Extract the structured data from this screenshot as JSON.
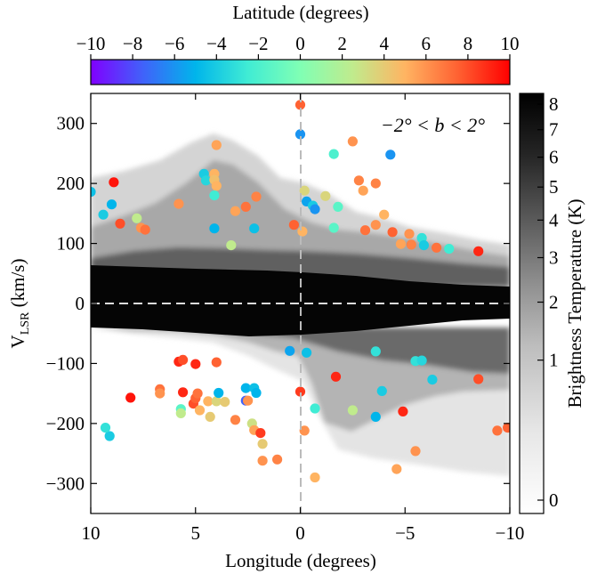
{
  "chart_data": {
    "type": "scatter",
    "title": "",
    "xlabel": "Longitude (degrees)",
    "ylabel_main": "V",
    "ylabel_sub": "LSR",
    "ylabel_unit": " (km/s)",
    "xlim": [
      10,
      -10
    ],
    "ylim": [
      -350,
      350
    ],
    "x_ticks": [
      10,
      5,
      0,
      -5,
      -10
    ],
    "x_tick_labels": [
      "10",
      "5",
      "0",
      "−5",
      "−10"
    ],
    "y_ticks": [
      300,
      200,
      100,
      0,
      -100,
      -200,
      -300
    ],
    "y_tick_labels": [
      "300",
      "200",
      "100",
      "0",
      "−100",
      "−200",
      "−300"
    ],
    "annotation": "−2° < b < 2°",
    "grid": false,
    "colorbar_top": {
      "label": "Latitude (degrees)",
      "range": [
        -10,
        10
      ],
      "ticks": [
        -10,
        -8,
        -6,
        -4,
        -2,
        0,
        2,
        4,
        6,
        8,
        10
      ],
      "tick_labels": [
        "−10",
        "−8",
        "−6",
        "−4",
        "−2",
        "0",
        "2",
        "4",
        "6",
        "8",
        "10"
      ],
      "colormap": "rainbow"
    },
    "colorbar_right": {
      "label": "Brightness Temperature (K)",
      "scale": "nonlinear",
      "ticks": [
        8,
        7,
        6,
        5,
        4,
        3,
        2,
        1,
        0
      ],
      "tick_labels": [
        "8",
        "7",
        "6",
        "5",
        "4",
        "3",
        "2",
        "1",
        "0"
      ],
      "colormap": "gray_r"
    },
    "points": [
      {
        "l": 10.0,
        "v": 186,
        "b": -4.5
      },
      {
        "l": 9.4,
        "v": 148,
        "b": -4.0
      },
      {
        "l": 9.0,
        "v": 165,
        "b": -5.0
      },
      {
        "l": 8.9,
        "v": 202,
        "b": 9.5
      },
      {
        "l": 8.6,
        "v": 133,
        "b": 8.0
      },
      {
        "l": 7.8,
        "v": 142,
        "b": 2.5
      },
      {
        "l": 7.6,
        "v": 126,
        "b": 6.0
      },
      {
        "l": 7.4,
        "v": 123,
        "b": 7.0
      },
      {
        "l": 5.8,
        "v": 166,
        "b": 6.0
      },
      {
        "l": 4.6,
        "v": 216,
        "b": -4.0
      },
      {
        "l": 4.5,
        "v": 205,
        "b": -3.5
      },
      {
        "l": 4.0,
        "v": 264,
        "b": 5.5
      },
      {
        "l": 4.1,
        "v": 216,
        "b": 5.0
      },
      {
        "l": 4.1,
        "v": 206,
        "b": 4.5
      },
      {
        "l": 4.0,
        "v": 196,
        "b": 5.0
      },
      {
        "l": 4.1,
        "v": 180,
        "b": -2.5
      },
      {
        "l": 4.1,
        "v": 125,
        "b": -5.0
      },
      {
        "l": 3.3,
        "v": 97,
        "b": 2.5
      },
      {
        "l": 3.1,
        "v": 154,
        "b": 5.5
      },
      {
        "l": 2.6,
        "v": 161,
        "b": 7.0
      },
      {
        "l": 2.1,
        "v": 178,
        "b": 6.5
      },
      {
        "l": 2.2,
        "v": 125,
        "b": -4.5
      },
      {
        "l": 0.3,
        "v": 131,
        "b": 7.5
      },
      {
        "l": 0.0,
        "v": 331,
        "b": 7.5
      },
      {
        "l": 0.0,
        "v": 282,
        "b": -6.0
      },
      {
        "l": -0.2,
        "v": 188,
        "b": 3.5
      },
      {
        "l": -0.3,
        "v": 170,
        "b": -5.5
      },
      {
        "l": -0.6,
        "v": 163,
        "b": -4.0
      },
      {
        "l": -0.7,
        "v": 157,
        "b": -6.0
      },
      {
        "l": -0.1,
        "v": 120,
        "b": 5.0
      },
      {
        "l": -1.2,
        "v": 179,
        "b": 3.5
      },
      {
        "l": -1.6,
        "v": 249,
        "b": -2.0
      },
      {
        "l": -1.6,
        "v": 126,
        "b": -1.5
      },
      {
        "l": -1.8,
        "v": 161,
        "b": -1.5
      },
      {
        "l": -2.5,
        "v": 270,
        "b": 6.0
      },
      {
        "l": -2.8,
        "v": 205,
        "b": 6.5
      },
      {
        "l": -3.0,
        "v": 188,
        "b": 5.5
      },
      {
        "l": -3.1,
        "v": 122,
        "b": 7.0
      },
      {
        "l": -3.6,
        "v": 200,
        "b": 6.5
      },
      {
        "l": -3.6,
        "v": 131,
        "b": 6.0
      },
      {
        "l": -4.0,
        "v": 148,
        "b": 5.0
      },
      {
        "l": -4.3,
        "v": 248,
        "b": -6.0
      },
      {
        "l": -4.4,
        "v": 119,
        "b": 7.5
      },
      {
        "l": -4.8,
        "v": 99,
        "b": 5.5
      },
      {
        "l": -5.2,
        "v": 116,
        "b": 6.0
      },
      {
        "l": -5.3,
        "v": 98,
        "b": 6.5
      },
      {
        "l": -5.8,
        "v": 109,
        "b": -3.0
      },
      {
        "l": -5.9,
        "v": 97,
        "b": -4.0
      },
      {
        "l": -6.5,
        "v": 93,
        "b": 7.0
      },
      {
        "l": -7.1,
        "v": 91,
        "b": -2.5
      },
      {
        "l": -8.5,
        "v": 87,
        "b": 9.0
      },
      {
        "l": 5.8,
        "v": -97,
        "b": 9.0
      },
      {
        "l": 5.6,
        "v": -94,
        "b": 8.0
      },
      {
        "l": 5.0,
        "v": -101,
        "b": 9.0
      },
      {
        "l": 4.0,
        "v": -98,
        "b": 7.5
      },
      {
        "l": 0.5,
        "v": -79,
        "b": -5.5
      },
      {
        "l": -0.3,
        "v": -82,
        "b": -4.5
      },
      {
        "l": -3.6,
        "v": -80,
        "b": -3.0
      },
      {
        "l": -5.5,
        "v": -96,
        "b": -3.0
      },
      {
        "l": -5.8,
        "v": -95,
        "b": -3.5
      },
      {
        "l": 8.1,
        "v": -157,
        "b": 9.5
      },
      {
        "l": 6.7,
        "v": -143,
        "b": 7.0
      },
      {
        "l": 6.7,
        "v": -150,
        "b": 6.0
      },
      {
        "l": 5.7,
        "v": -176,
        "b": -1.5
      },
      {
        "l": 5.7,
        "v": -183,
        "b": 2.5
      },
      {
        "l": 5.6,
        "v": -148,
        "b": 9.0
      },
      {
        "l": 5.1,
        "v": -167,
        "b": 8.0
      },
      {
        "l": 5.0,
        "v": -158,
        "b": 7.5
      },
      {
        "l": 4.9,
        "v": -150,
        "b": 7.0
      },
      {
        "l": 4.8,
        "v": -178,
        "b": 5.0
      },
      {
        "l": 4.4,
        "v": -163,
        "b": 5.0
      },
      {
        "l": 4.3,
        "v": -189,
        "b": 4.0
      },
      {
        "l": 4.0,
        "v": -163,
        "b": 3.5
      },
      {
        "l": 3.9,
        "v": -149,
        "b": -5.0
      },
      {
        "l": 3.6,
        "v": -164,
        "b": 4.0
      },
      {
        "l": 3.1,
        "v": -194,
        "b": 6.5
      },
      {
        "l": 2.6,
        "v": -141,
        "b": -5.0
      },
      {
        "l": 2.6,
        "v": -162,
        "b": -7.5
      },
      {
        "l": 2.5,
        "v": -162,
        "b": 6.0
      },
      {
        "l": 2.2,
        "v": -141,
        "b": -4.5
      },
      {
        "l": 2.1,
        "v": -149,
        "b": -5.0
      },
      {
        "l": 2.3,
        "v": -200,
        "b": 3.0
      },
      {
        "l": 2.2,
        "v": -211,
        "b": 5.5
      },
      {
        "l": 1.9,
        "v": -216,
        "b": 8.5
      },
      {
        "l": 1.8,
        "v": -234,
        "b": 4.0
      },
      {
        "l": 1.8,
        "v": -262,
        "b": 6.0
      },
      {
        "l": 1.1,
        "v": -260,
        "b": 6.5
      },
      {
        "l": 0.0,
        "v": -147,
        "b": 8.5
      },
      {
        "l": -0.2,
        "v": -212,
        "b": 6.0
      },
      {
        "l": -0.7,
        "v": -175,
        "b": -2.5
      },
      {
        "l": -0.7,
        "v": -290,
        "b": 5.0
      },
      {
        "l": -1.7,
        "v": -122,
        "b": 9.0
      },
      {
        "l": -2.5,
        "v": -178,
        "b": 2.5
      },
      {
        "l": -3.6,
        "v": -189,
        "b": -5.0
      },
      {
        "l": -3.9,
        "v": -146,
        "b": -4.0
      },
      {
        "l": -4.6,
        "v": -276,
        "b": 5.5
      },
      {
        "l": -4.9,
        "v": -180,
        "b": 9.0
      },
      {
        "l": -5.5,
        "v": -246,
        "b": 6.0
      },
      {
        "l": -6.3,
        "v": -127,
        "b": -4.0
      },
      {
        "l": -8.5,
        "v": -126,
        "b": 8.0
      },
      {
        "l": -9.4,
        "v": -212,
        "b": 7.0
      },
      {
        "l": -9.9,
        "v": -207,
        "b": 7.5
      },
      {
        "l": 9.1,
        "v": -221,
        "b": -4.0
      },
      {
        "l": 9.3,
        "v": -207,
        "b": -3.0
      }
    ]
  }
}
